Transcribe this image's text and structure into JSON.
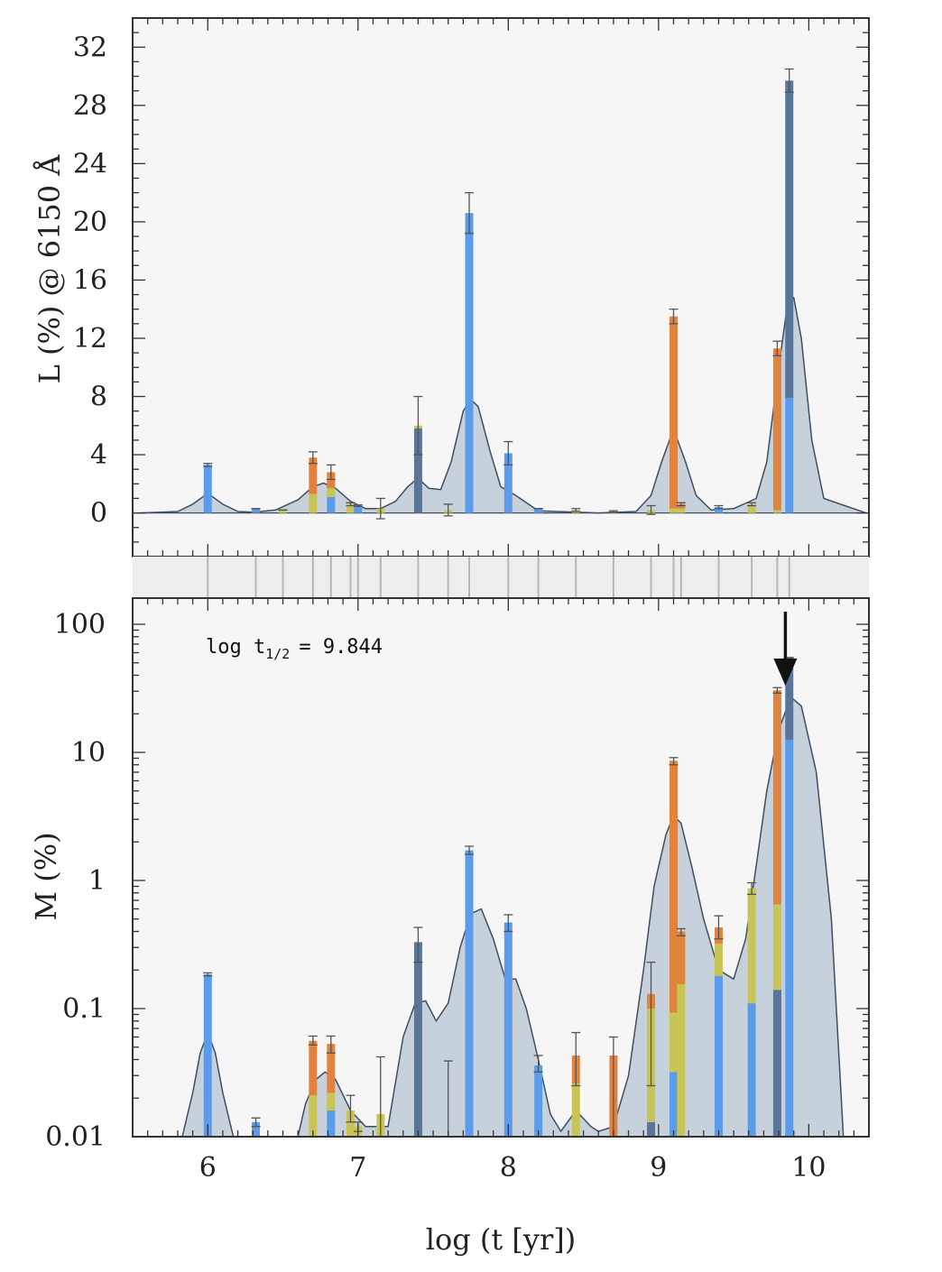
{
  "colors": {
    "background": "#f6f6f6",
    "envelope_fill": "#c6d1db",
    "envelope_line": "#3f4f60",
    "blue": "#5b9bea",
    "dark_blue": "#59759a",
    "orange": "#e0833e",
    "yellow": "#c7c555",
    "error_bar": "#555555",
    "sep_lines": "#b8b8b8",
    "arrow": "#111111"
  },
  "xlabel": "log (t [yr])",
  "annotation": {
    "text": "log t",
    "subscript": "1/2",
    "suffix": "= 9.844",
    "arrow_x": 9.844
  },
  "chart_data": [
    {
      "type": "bar",
      "panel": "top",
      "ylabel": "L (%) @ 6150 Å",
      "xlim": [
        5.5,
        10.4
      ],
      "ylim": [
        -3,
        34
      ],
      "xticks": [
        "6",
        "7",
        "8",
        "9",
        "10"
      ],
      "yticks": [
        "0",
        "4",
        "8",
        "12",
        "16",
        "20",
        "24",
        "28",
        "32"
      ],
      "grid": false,
      "stacked_bars": [
        {
          "x": 6.0,
          "segments": [
            [
              "blue",
              3.3
            ]
          ],
          "err": 0.1
        },
        {
          "x": 6.32,
          "segments": [
            [
              "blue",
              0.3
            ]
          ],
          "err": 0.0
        },
        {
          "x": 6.5,
          "segments": [
            [
              "yellow",
              0.2
            ]
          ],
          "err": 0.0
        },
        {
          "x": 6.7,
          "segments": [
            [
              "yellow",
              1.3
            ],
            [
              "orange",
              2.5
            ]
          ],
          "err": 0.4
        },
        {
          "x": 6.82,
          "segments": [
            [
              "blue",
              1.1
            ],
            [
              "yellow",
              0.6
            ],
            [
              "orange",
              1.1
            ]
          ],
          "err": 0.5
        },
        {
          "x": 6.95,
          "segments": [
            [
              "yellow",
              0.6
            ]
          ],
          "err": 0.1
        },
        {
          "x": 7.0,
          "segments": [
            [
              "blue",
              0.5
            ]
          ],
          "err": 0.05
        },
        {
          "x": 7.15,
          "segments": [
            [
              "yellow",
              0.3
            ]
          ],
          "err": 0.7
        },
        {
          "x": 7.4,
          "segments": [
            [
              "dark_blue",
              5.8
            ],
            [
              "yellow",
              0.2
            ]
          ],
          "err": 2.0
        },
        {
          "x": 7.6,
          "segments": [
            [
              "yellow",
              0.2
            ]
          ],
          "err": 0.4
        },
        {
          "x": 7.74,
          "segments": [
            [
              "blue",
              20.6
            ]
          ],
          "err": 1.4
        },
        {
          "x": 8.0,
          "segments": [
            [
              "blue",
              4.1
            ]
          ],
          "err": 0.8
        },
        {
          "x": 8.2,
          "segments": [
            [
              "blue",
              0.3
            ]
          ],
          "err": 0.0
        },
        {
          "x": 8.45,
          "segments": [
            [
              "yellow",
              0.2
            ]
          ],
          "err": 0.1
        },
        {
          "x": 8.7,
          "segments": [
            [
              "yellow",
              0.1
            ]
          ],
          "err": 0.05
        },
        {
          "x": 8.95,
          "segments": [
            [
              "yellow",
              0.2
            ]
          ],
          "err": 0.3
        },
        {
          "x": 9.1,
          "segments": [
            [
              "yellow",
              0.3
            ],
            [
              "orange",
              13.2
            ]
          ],
          "err": 0.5
        },
        {
          "x": 9.15,
          "segments": [
            [
              "yellow",
              0.3
            ],
            [
              "orange",
              0.3
            ]
          ],
          "err": 0.1
        },
        {
          "x": 9.4,
          "segments": [
            [
              "blue",
              0.4
            ]
          ],
          "err": 0.1
        },
        {
          "x": 9.62,
          "segments": [
            [
              "yellow",
              0.6
            ]
          ],
          "err": 0.1
        },
        {
          "x": 9.79,
          "segments": [
            [
              "yellow",
              0.2
            ],
            [
              "orange",
              11.1
            ]
          ],
          "err": 0.5
        },
        {
          "x": 9.87,
          "segments": [
            [
              "blue",
              7.9
            ],
            [
              "dark_blue",
              21.8
            ]
          ],
          "err": 0.8
        }
      ],
      "envelope": {
        "x": [
          5.55,
          5.8,
          5.9,
          6.0,
          6.1,
          6.2,
          6.3,
          6.45,
          6.6,
          6.7,
          6.77,
          6.85,
          6.95,
          7.05,
          7.15,
          7.25,
          7.33,
          7.4,
          7.47,
          7.55,
          7.62,
          7.7,
          7.75,
          7.8,
          7.88,
          7.95,
          8.05,
          8.2,
          8.6,
          8.85,
          8.95,
          9.02,
          9.08,
          9.12,
          9.18,
          9.25,
          9.35,
          9.5,
          9.65,
          9.72,
          9.8,
          9.86,
          9.9,
          9.95,
          10.02,
          10.1,
          10.38
        ],
        "y": [
          0.0,
          0.1,
          0.6,
          1.35,
          0.6,
          0.1,
          0.05,
          0.2,
          0.9,
          1.8,
          2.05,
          1.7,
          0.8,
          0.3,
          0.3,
          0.8,
          1.8,
          2.4,
          1.7,
          1.6,
          3.5,
          7.0,
          7.8,
          7.3,
          4.2,
          1.8,
          1.2,
          0.15,
          0.0,
          0.1,
          1.2,
          3.5,
          5.2,
          5.2,
          3.5,
          1.2,
          0.2,
          0.3,
          1.0,
          3.5,
          10.0,
          14.5,
          14.8,
          12.0,
          5.0,
          1.0,
          0.0
        ]
      }
    },
    {
      "type": "bar",
      "panel": "bottom",
      "ylabel": "M (%)",
      "yscale": "log",
      "xlim": [
        5.5,
        10.4
      ],
      "ylim": [
        0.01,
        160
      ],
      "xticks": [
        "6",
        "7",
        "8",
        "9",
        "10"
      ],
      "yticks": [
        "0.01",
        "0.1",
        "1",
        "10",
        "100"
      ],
      "grid": false,
      "stacked_bars": [
        {
          "x": 6.0,
          "segments": [
            [
              "blue",
              0.185
            ]
          ],
          "top": 0.185,
          "err_lo": 0.18,
          "err_hi": 0.19
        },
        {
          "x": 6.32,
          "segments": [
            [
              "blue",
              0.013
            ]
          ],
          "top": 0.013,
          "err_lo": 0.012,
          "err_hi": 0.014
        },
        {
          "x": 6.7,
          "segments": [
            [
              "yellow",
              0.021
            ],
            [
              "orange",
              0.056
            ]
          ],
          "top": 0.056,
          "err_lo": 0.052,
          "err_hi": 0.061
        },
        {
          "x": 6.82,
          "segments": [
            [
              "blue",
              0.016
            ],
            [
              "yellow",
              0.022
            ],
            [
              "orange",
              0.053
            ]
          ],
          "top": 0.053,
          "err_lo": 0.045,
          "err_hi": 0.061
        },
        {
          "x": 6.95,
          "segments": [
            [
              "yellow",
              0.016
            ]
          ],
          "top": 0.016,
          "err_lo": 0.013,
          "err_hi": 0.021
        },
        {
          "x": 7.0,
          "segments": [
            [
              "yellow",
              0.012
            ]
          ],
          "top": 0.012,
          "err_lo": 0.011,
          "err_hi": 0.013
        },
        {
          "x": 7.15,
          "segments": [
            [
              "yellow",
              0.015
            ]
          ],
          "top": 0.015,
          "err_lo": 0.01,
          "err_hi": 0.042
        },
        {
          "x": 7.4,
          "segments": [
            [
              "dark_blue",
              0.33
            ]
          ],
          "top": 0.33,
          "err_lo": 0.23,
          "err_hi": 0.43
        },
        {
          "x": 7.6,
          "segments": [],
          "top": 0.01,
          "err_lo": 0.01,
          "err_hi": 0.039
        },
        {
          "x": 7.74,
          "segments": [
            [
              "blue",
              1.72
            ]
          ],
          "top": 1.72,
          "err_lo": 1.6,
          "err_hi": 1.85
        },
        {
          "x": 8.0,
          "segments": [
            [
              "blue",
              0.47
            ]
          ],
          "top": 0.47,
          "err_lo": 0.4,
          "err_hi": 0.54
        },
        {
          "x": 8.2,
          "segments": [
            [
              "blue",
              0.036
            ]
          ],
          "top": 0.036,
          "err_lo": 0.032,
          "err_hi": 0.043
        },
        {
          "x": 8.45,
          "segments": [
            [
              "yellow",
              0.026
            ],
            [
              "orange",
              0.043
            ]
          ],
          "top": 0.043,
          "err_lo": 0.025,
          "err_hi": 0.065
        },
        {
          "x": 8.7,
          "segments": [
            [
              "orange",
              0.043
            ]
          ],
          "top": 0.043,
          "err_lo": 0.01,
          "err_hi": 0.06
        },
        {
          "x": 8.95,
          "segments": [
            [
              "dark_blue",
              0.013
            ],
            [
              "yellow",
              0.1
            ],
            [
              "orange",
              0.13
            ]
          ],
          "top": 0.13,
          "err_lo": 0.025,
          "err_hi": 0.23
        },
        {
          "x": 9.1,
          "segments": [
            [
              "blue",
              0.032
            ],
            [
              "yellow",
              0.093
            ],
            [
              "orange",
              8.6
            ]
          ],
          "top": 8.6,
          "err_lo": 8.0,
          "err_hi": 9.1
        },
        {
          "x": 9.15,
          "segments": [
            [
              "yellow",
              0.155
            ],
            [
              "orange",
              0.4
            ]
          ],
          "top": 0.4,
          "err_lo": 0.37,
          "err_hi": 0.42
        },
        {
          "x": 9.4,
          "segments": [
            [
              "blue",
              0.18
            ],
            [
              "yellow",
              0.32
            ],
            [
              "orange",
              0.43
            ]
          ],
          "top": 0.43,
          "err_lo": 0.35,
          "err_hi": 0.53
        },
        {
          "x": 9.62,
          "segments": [
            [
              "blue",
              0.11
            ],
            [
              "yellow",
              0.87
            ]
          ],
          "top": 0.87,
          "err_lo": 0.78,
          "err_hi": 0.96
        },
        {
          "x": 9.79,
          "segments": [
            [
              "dark_blue",
              0.14
            ],
            [
              "yellow",
              0.65
            ],
            [
              "orange",
              30.5
            ]
          ],
          "top": 30.5,
          "err_lo": 29.0,
          "err_hi": 32.0
        },
        {
          "x": 9.87,
          "segments": [
            [
              "blue",
              12.5
            ],
            [
              "dark_blue",
              55.0
            ]
          ],
          "top": 55.0,
          "err_lo": 55.0,
          "err_hi": 55.0
        }
      ],
      "envelope": {
        "x": [
          5.83,
          5.9,
          5.95,
          6.0,
          6.05,
          6.1,
          6.17,
          6.6,
          6.65,
          6.72,
          6.78,
          6.85,
          6.95,
          7.05,
          7.2,
          7.3,
          7.38,
          7.45,
          7.52,
          7.6,
          7.68,
          7.75,
          7.82,
          7.9,
          7.98,
          8.05,
          8.12,
          8.2,
          8.28,
          8.35,
          8.45,
          8.55,
          8.6,
          8.7,
          8.8,
          8.9,
          8.97,
          9.05,
          9.1,
          9.15,
          9.22,
          9.3,
          9.4,
          9.5,
          9.58,
          9.65,
          9.72,
          9.8,
          9.88,
          9.95,
          10.05,
          10.15,
          10.23
        ],
        "y": [
          0.01,
          0.022,
          0.045,
          0.065,
          0.045,
          0.022,
          0.01,
          0.01,
          0.018,
          0.028,
          0.032,
          0.028,
          0.016,
          0.012,
          0.012,
          0.06,
          0.11,
          0.115,
          0.08,
          0.11,
          0.3,
          0.55,
          0.6,
          0.35,
          0.17,
          0.17,
          0.1,
          0.04,
          0.015,
          0.011,
          0.016,
          0.012,
          0.011,
          0.012,
          0.03,
          0.2,
          0.9,
          2.3,
          3.2,
          2.8,
          1.3,
          0.5,
          0.2,
          0.17,
          0.35,
          1.3,
          5.0,
          15.0,
          27.0,
          23.0,
          7.0,
          0.5,
          0.01
        ]
      }
    }
  ]
}
